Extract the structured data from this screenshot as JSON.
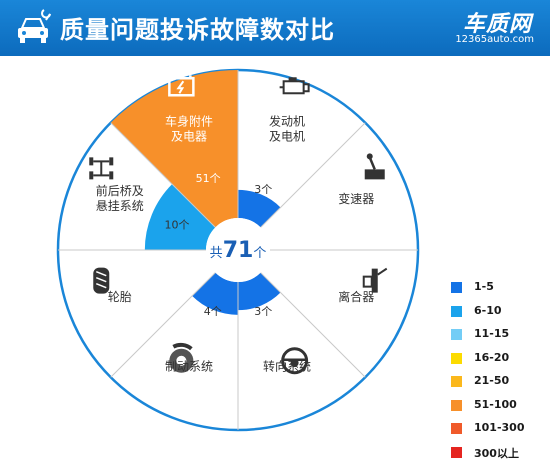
{
  "header": {
    "title": "质量问题投诉故障数对比",
    "brand_name": "车质网",
    "brand_url": "12365auto.com"
  },
  "chart_data": {
    "type": "pie",
    "center_label": {
      "prefix": "共",
      "value": "71",
      "suffix": "个"
    },
    "segments": [
      {
        "name": "发动机\n及电机",
        "icon": "engine-icon",
        "count": 3,
        "count_label": "3个",
        "color": "#1473e6"
      },
      {
        "name": "变速器",
        "icon": "gear-shifter-icon",
        "count": 0,
        "count_label": "",
        "color": ""
      },
      {
        "name": "离合器",
        "icon": "clutch-icon",
        "count": 0,
        "count_label": "",
        "color": ""
      },
      {
        "name": "转向系统",
        "icon": "steering-wheel-icon",
        "count": 3,
        "count_label": "3个",
        "color": "#1473e6"
      },
      {
        "name": "制动系统",
        "icon": "brake-disc-icon",
        "count": 4,
        "count_label": "4个",
        "color": "#1473e6"
      },
      {
        "name": "轮胎",
        "icon": "tire-icon",
        "count": 0,
        "count_label": "",
        "color": ""
      },
      {
        "name": "前后桥及\n悬挂系统",
        "icon": "axle-suspension-icon",
        "count": 10,
        "count_label": "10个",
        "color": "#1ba3ec"
      },
      {
        "name": "车身附件\n及电器",
        "icon": "battery-icon",
        "count": 51,
        "count_label": "51个",
        "color": "#f7902a"
      }
    ],
    "legend": [
      {
        "label": "1-5",
        "color": "#1473e6"
      },
      {
        "label": "6-10",
        "color": "#1ba3ec"
      },
      {
        "label": "11-15",
        "color": "#73cdf6"
      },
      {
        "label": "16-20",
        "color": "#fcdb00"
      },
      {
        "label": "21-50",
        "color": "#fbb81c"
      },
      {
        "label": "51-100",
        "color": "#f7902a"
      },
      {
        "label": "101-300",
        "color": "#f05a2a"
      },
      {
        "label": "300以上",
        "color": "#e52520"
      }
    ]
  }
}
